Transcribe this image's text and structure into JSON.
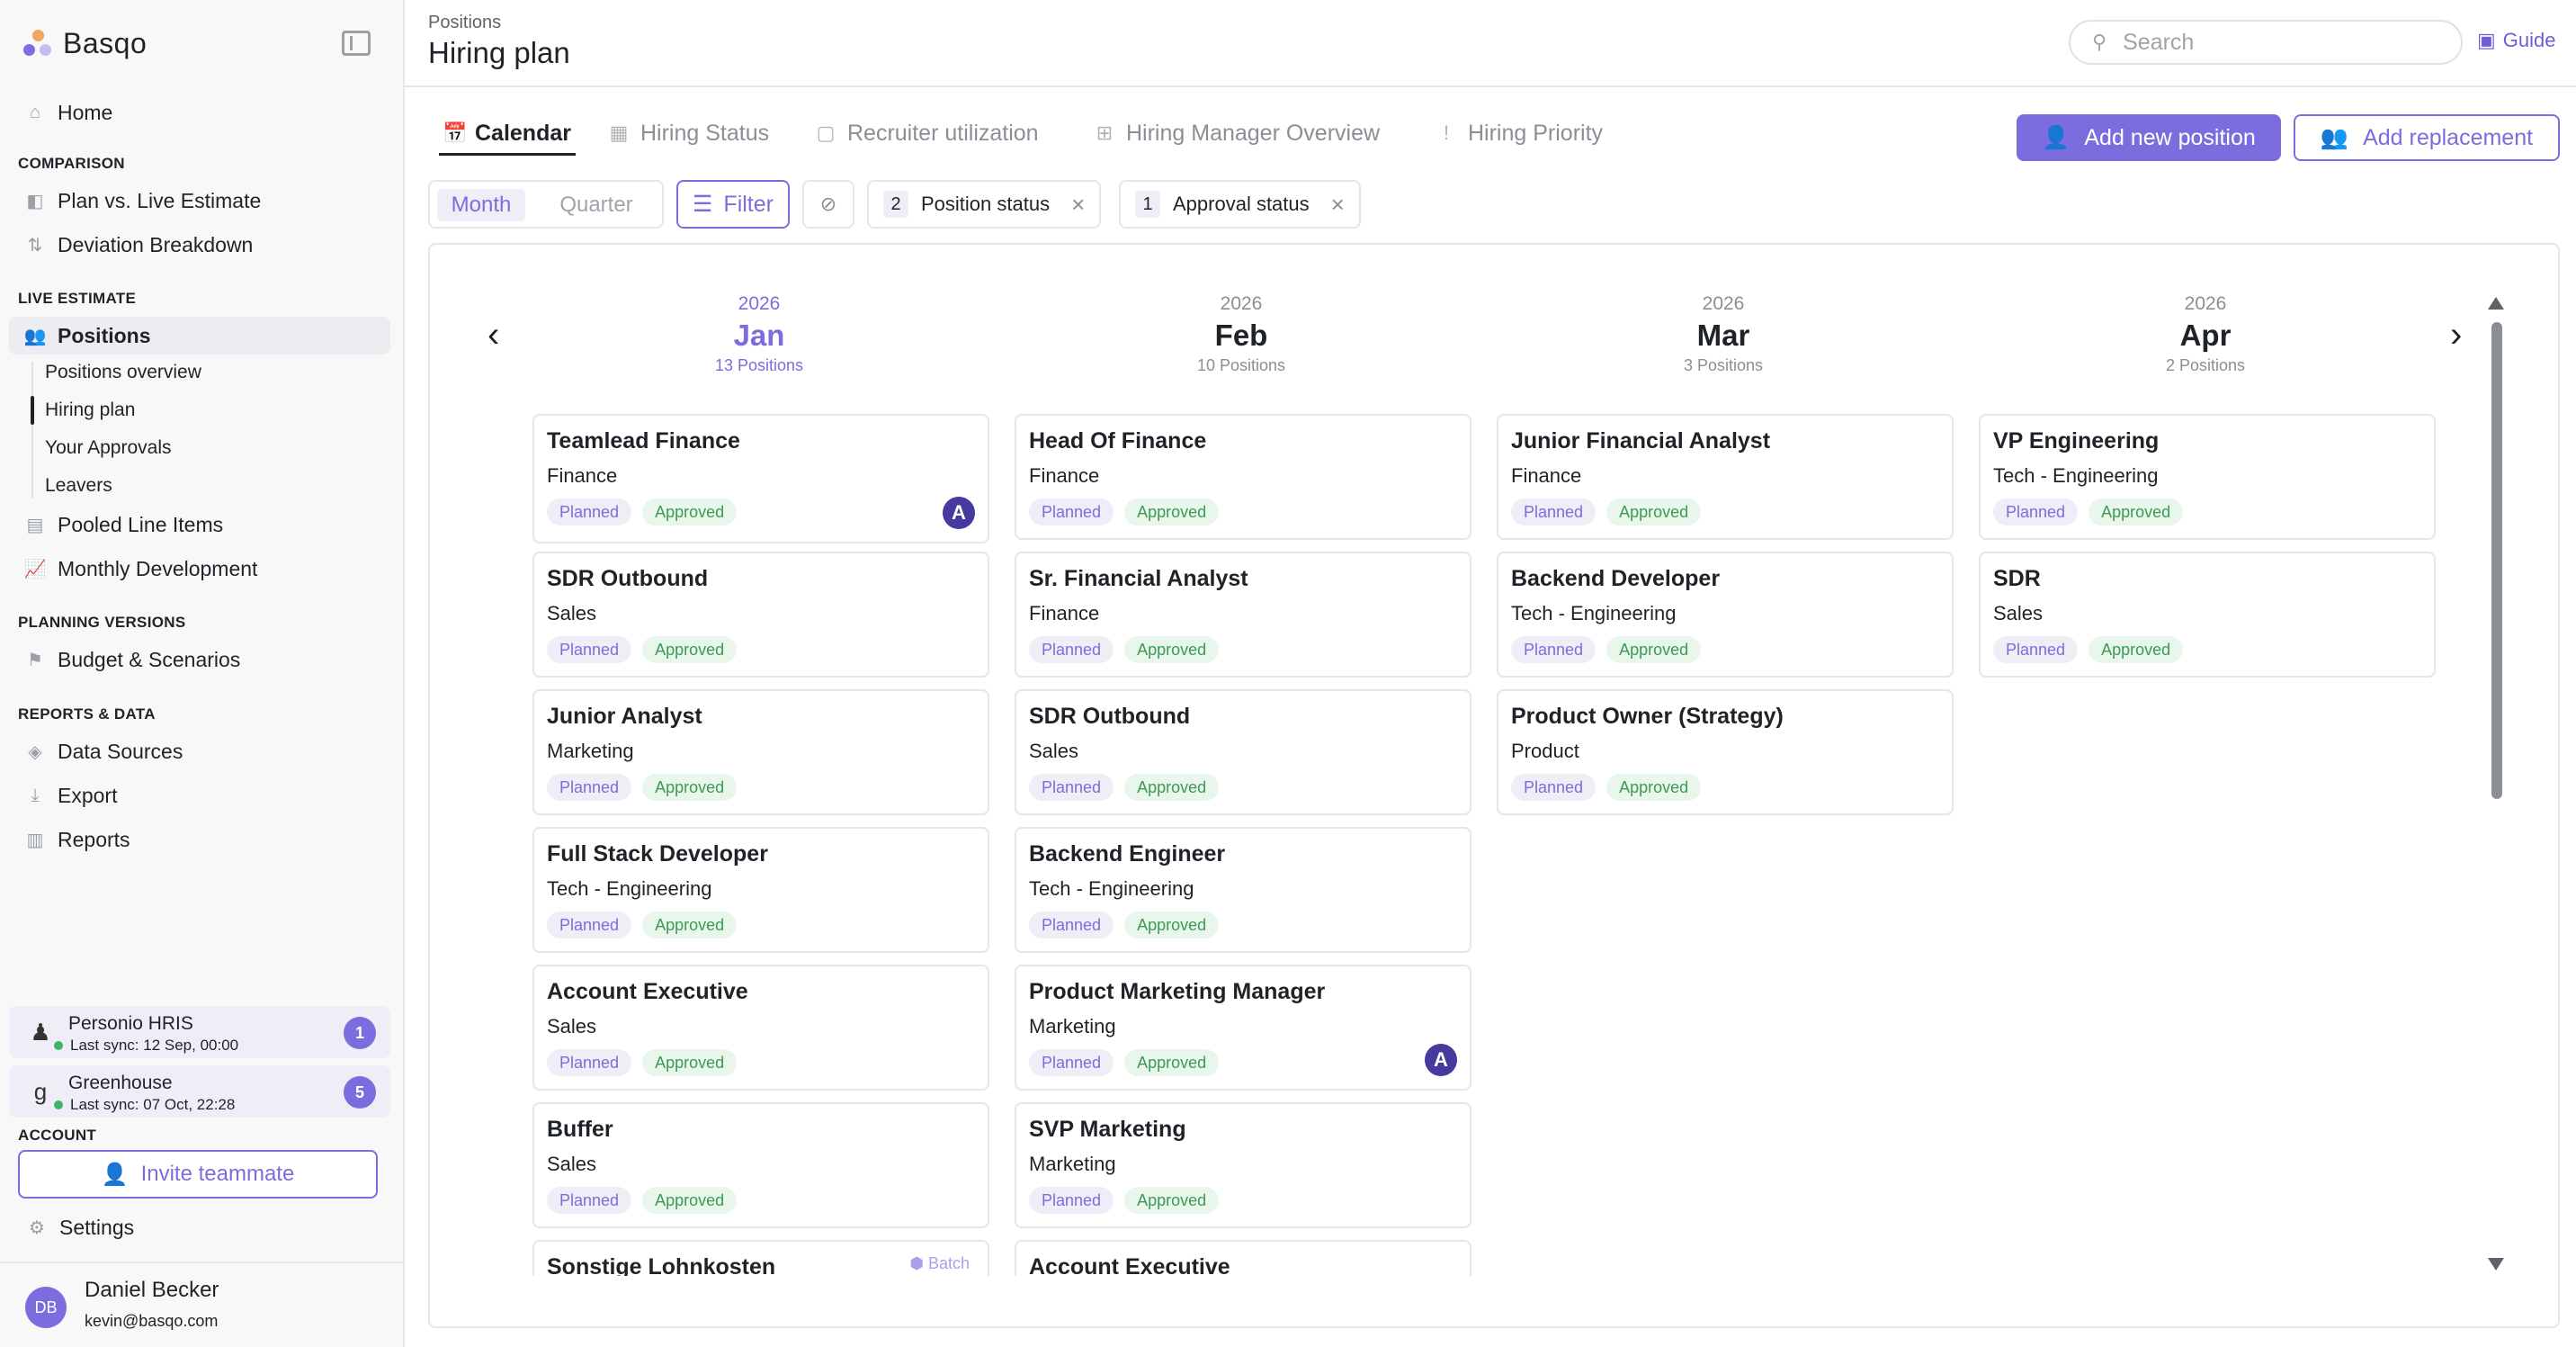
{
  "app": {
    "name": "Basqo"
  },
  "sidebar": {
    "home": "Home",
    "sections": {
      "comparison": "COMPARISON",
      "live_estimate": "LIVE ESTIMATE",
      "planning_versions": "PLANNING VERSIONS",
      "reports_data": "REPORTS & DATA",
      "account": "ACCOUNT"
    },
    "items": {
      "plan_vs_live": "Plan vs. Live Estimate",
      "deviation": "Deviation Breakdown",
      "positions": "Positions",
      "positions_overview": "Positions overview",
      "hiring_plan": "Hiring plan",
      "your_approvals": "Your Approvals",
      "leavers": "Leavers",
      "pooled": "Pooled Line Items",
      "monthly": "Monthly Development",
      "budget": "Budget & Scenarios",
      "data_sources": "Data Sources",
      "export": "Export",
      "reports": "Reports",
      "settings": "Settings"
    },
    "integrations": [
      {
        "name": "Personio HRIS",
        "sync": "Last sync: 12 Sep, 00:00",
        "count": "1"
      },
      {
        "name": "Greenhouse",
        "sync": "Last sync: 07 Oct, 22:28",
        "count": "5"
      }
    ],
    "invite": "Invite teammate",
    "user": {
      "initials": "DB",
      "name": "Daniel Becker",
      "email": "kevin@basqo.com"
    }
  },
  "header": {
    "breadcrumb": "Positions",
    "title": "Hiring plan",
    "search_placeholder": "Search",
    "guide": "Guide"
  },
  "tabs": [
    "Calendar",
    "Hiring Status",
    "Recruiter utilization",
    "Hiring Manager Overview",
    "Hiring Priority"
  ],
  "actions": {
    "add_position": "Add new position",
    "add_replacement": "Add replacement"
  },
  "filters": {
    "period_options": [
      "Month",
      "Quarter"
    ],
    "filter_label": "Filter",
    "chips": [
      {
        "count": "2",
        "label": "Position status"
      },
      {
        "count": "1",
        "label": "Approval status"
      }
    ]
  },
  "calendar": {
    "months": [
      {
        "year": "2026",
        "month": "Jan",
        "count": "13 Positions"
      },
      {
        "year": "2026",
        "month": "Feb",
        "count": "10 Positions"
      },
      {
        "year": "2026",
        "month": "Mar",
        "count": "3 Positions"
      },
      {
        "year": "2026",
        "month": "Apr",
        "count": "2 Positions"
      }
    ],
    "status_planned": "Planned",
    "status_approved": "Approved",
    "columns": [
      [
        {
          "title": "Teamlead Finance",
          "dept": "Finance"
        },
        {
          "title": "SDR Outbound",
          "dept": "Sales"
        },
        {
          "title": "Junior Analyst",
          "dept": "Marketing"
        },
        {
          "title": "Full Stack Developer",
          "dept": "Tech - Engineering"
        },
        {
          "title": "Account Executive",
          "dept": "Sales"
        },
        {
          "title": "Buffer",
          "dept": "Sales"
        },
        {
          "title": "Sonstige Lohnkosten",
          "dept": "",
          "batch": "Batch"
        }
      ],
      [
        {
          "title": "Head Of Finance",
          "dept": "Finance"
        },
        {
          "title": "Sr. Financial Analyst",
          "dept": "Finance"
        },
        {
          "title": "SDR Outbound",
          "dept": "Sales"
        },
        {
          "title": "Backend Engineer",
          "dept": "Tech - Engineering"
        },
        {
          "title": "Product Marketing Manager",
          "dept": "Marketing"
        },
        {
          "title": "SVP Marketing",
          "dept": "Marketing"
        },
        {
          "title": "Account Executive",
          "dept": ""
        }
      ],
      [
        {
          "title": "Junior Financial Analyst",
          "dept": "Finance"
        },
        {
          "title": "Backend Developer",
          "dept": "Tech - Engineering"
        },
        {
          "title": "Product Owner (Strategy)",
          "dept": "Product"
        }
      ],
      [
        {
          "title": "VP Engineering",
          "dept": "Tech - Engineering"
        },
        {
          "title": "SDR",
          "dept": "Sales"
        }
      ]
    ]
  }
}
